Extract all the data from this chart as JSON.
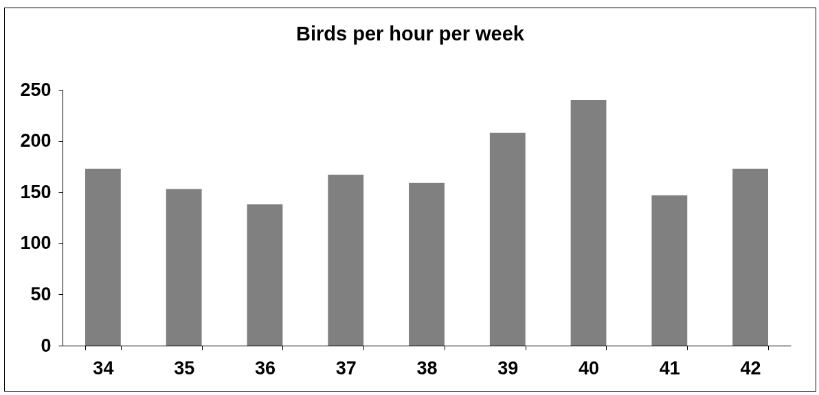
{
  "chart_data": {
    "type": "bar",
    "title": "Birds per hour per week",
    "categories": [
      "34",
      "35",
      "36",
      "37",
      "38",
      "39",
      "40",
      "41",
      "42"
    ],
    "values": [
      173,
      153,
      138,
      167,
      159,
      208,
      240,
      147,
      173
    ],
    "color": "#808080",
    "ylim": [
      0,
      250
    ],
    "yticks": [
      0,
      50,
      100,
      150,
      200,
      250
    ]
  }
}
